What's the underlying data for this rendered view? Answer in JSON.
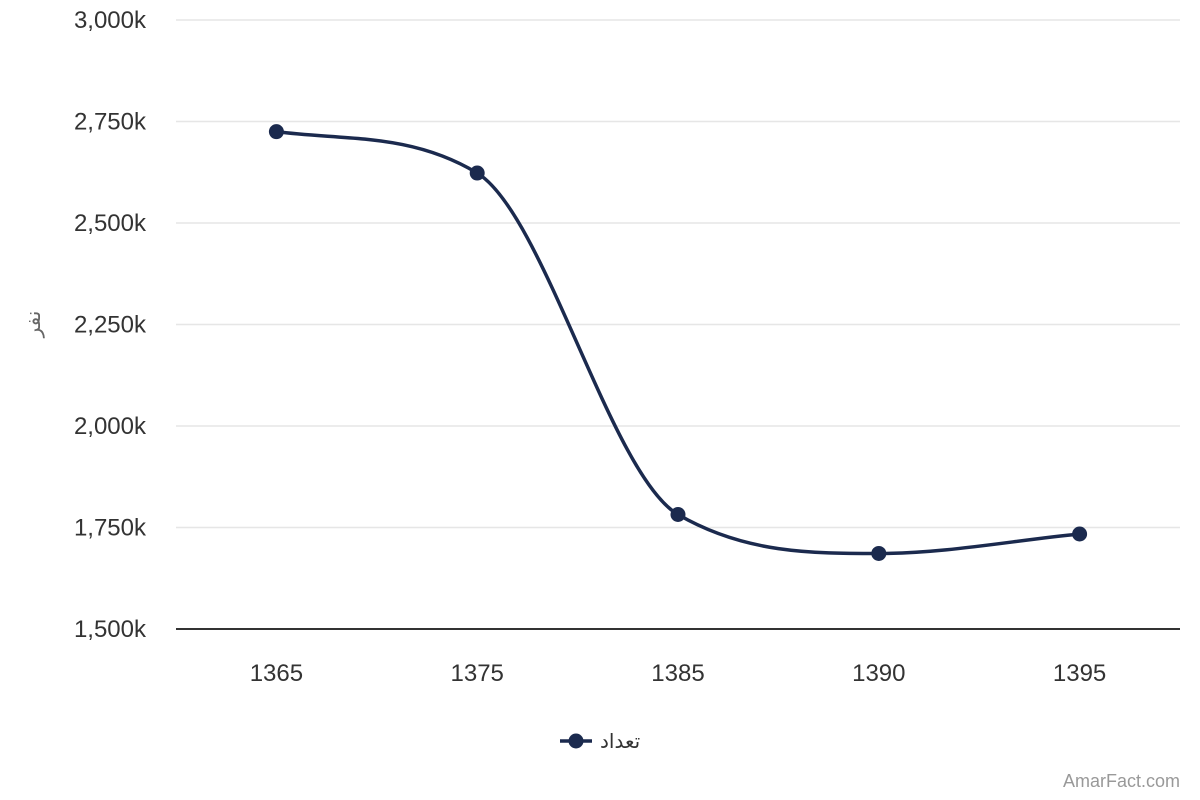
{
  "chart_data": {
    "type": "line",
    "categories": [
      "1365",
      "1375",
      "1385",
      "1390",
      "1395"
    ],
    "series": [
      {
        "name": "تعداد",
        "values": [
          2725,
          2623,
          1782,
          1686,
          1734
        ],
        "color": "#1b2a4e"
      }
    ],
    "ylabel": "نفر",
    "ylim": [
      1500,
      3000
    ],
    "yticks": [
      1500,
      1750,
      2000,
      2250,
      2500,
      2750,
      3000
    ],
    "ytick_labels": [
      "1,500k",
      "1,750k",
      "2,000k",
      "2,250k",
      "2,500k",
      "2,750k",
      "3,000k"
    ],
    "grid": true,
    "legend_position": "bottom-center",
    "smooth": true
  },
  "credit": "AmarFact.com",
  "colors": {
    "series": "#1b2a4e",
    "grid": "#e6e6e6",
    "axis": "#333333"
  }
}
